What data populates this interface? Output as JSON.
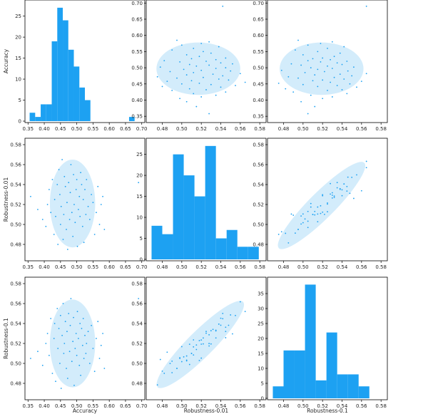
{
  "colors": {
    "bar": "#1da1f2",
    "point": "#1da1f2",
    "ellipse": "#d3ecfb",
    "axis": "#000000"
  },
  "chart_data": [
    {
      "type": "bar",
      "row": 0,
      "col": 0,
      "ylabel": "Accuracy",
      "xlabel": "",
      "xlim": [
        0.345,
        0.705
      ],
      "ylim": [
        0,
        28.5
      ],
      "xticks": [
        "0.35",
        "0.40",
        "0.45",
        "0.50",
        "0.55",
        "0.60",
        "0.65",
        "0.70"
      ],
      "yticks": [
        "0",
        "5",
        "10",
        "15",
        "20",
        "25"
      ],
      "bins": [
        0.355,
        0.372,
        0.389,
        0.406,
        0.423,
        0.44,
        0.457,
        0.474,
        0.491,
        0.508,
        0.525,
        0.542,
        0.559,
        0.576,
        0.593,
        0.61,
        0.627,
        0.644,
        0.661,
        0.678,
        0.695
      ],
      "counts": [
        2,
        1,
        4,
        4,
        19,
        27,
        24,
        17,
        13,
        8,
        5,
        0,
        0,
        0,
        0,
        0,
        0,
        0,
        1,
        0
      ]
    },
    {
      "type": "scatter",
      "row": 0,
      "col": 1,
      "ylabel": "",
      "xlabel": "",
      "xlim": [
        0.465,
        0.585
      ],
      "ylim": [
        0.335,
        0.705
      ],
      "xticks": [
        "0.48",
        "0.50",
        "0.52",
        "0.54",
        "0.56",
        "0.58"
      ],
      "yticks": [
        "0.35",
        "0.40",
        "0.45",
        "0.50",
        "0.55",
        "0.60",
        "0.65",
        "0.70"
      ],
      "ellipse": {
        "cx": 0.517,
        "cy": 0.497,
        "rx": 0.043,
        "ry": 0.081,
        "angle": 0
      }
    },
    {
      "type": "scatter",
      "row": 0,
      "col": 2,
      "ylabel": "",
      "xlabel": "",
      "xlim": [
        0.465,
        0.585
      ],
      "ylim": [
        0.335,
        0.705
      ],
      "xticks": [
        "0.48",
        "0.50",
        "0.52",
        "0.54",
        "0.56",
        "0.58"
      ],
      "yticks": [
        "0.35",
        "0.40",
        "0.45",
        "0.50",
        "0.55",
        "0.60",
        "0.65",
        "0.70"
      ],
      "ellipse": {
        "cx": 0.519,
        "cy": 0.497,
        "rx": 0.043,
        "ry": 0.081,
        "angle": 0
      }
    },
    {
      "type": "scatter",
      "row": 1,
      "col": 0,
      "ylabel": "Robustness-0.01",
      "xlabel": "",
      "xlim": [
        0.345,
        0.705
      ],
      "ylim": [
        0.465,
        0.585
      ],
      "xticks": [
        "0.35",
        "0.40",
        "0.45",
        "0.50",
        "0.55",
        "0.60",
        "0.65",
        "0.70"
      ],
      "yticks": [
        "0.48",
        "0.50",
        "0.52",
        "0.54",
        "0.56",
        "0.58"
      ],
      "ellipse": {
        "cx": 0.487,
        "cy": 0.521,
        "rx": 0.085,
        "ry": 0.044,
        "angle": 0
      }
    },
    {
      "type": "bar",
      "row": 1,
      "col": 1,
      "ylabel": "",
      "xlabel": "",
      "xlim": [
        0.465,
        0.585
      ],
      "ylim": [
        0,
        28.5
      ],
      "xticks": [
        "0.48",
        "0.50",
        "0.52",
        "0.54",
        "0.56",
        "0.58"
      ],
      "yticks": [
        "0",
        "5",
        "10",
        "15",
        "20",
        "25"
      ],
      "bins": [
        0.469,
        0.48,
        0.491,
        0.502,
        0.513,
        0.524,
        0.535,
        0.546,
        0.557,
        0.568,
        0.579
      ],
      "counts": [
        8,
        6,
        25,
        20,
        15,
        27,
        5,
        7,
        3,
        3
      ]
    },
    {
      "type": "scatter",
      "row": 1,
      "col": 2,
      "ylabel": "",
      "xlabel": "",
      "xlim": [
        0.465,
        0.585
      ],
      "ylim": [
        0.465,
        0.585
      ],
      "xticks": [
        "0.48",
        "0.50",
        "0.52",
        "0.54",
        "0.56",
        "0.58"
      ],
      "yticks": [
        "0.48",
        "0.50",
        "0.52",
        "0.54",
        "0.56",
        "0.58"
      ],
      "ellipse": {
        "cx": 0.519,
        "cy": 0.519,
        "rx": 0.062,
        "ry": 0.013,
        "angle": 45
      }
    },
    {
      "type": "scatter",
      "row": 2,
      "col": 0,
      "ylabel": "Robustness-0.1",
      "xlabel": "Accuracy",
      "xlim": [
        0.345,
        0.705
      ],
      "ylim": [
        0.465,
        0.585
      ],
      "xticks": [
        "0.35",
        "0.40",
        "0.45",
        "0.50",
        "0.55",
        "0.60",
        "0.65",
        "0.70"
      ],
      "yticks": [
        "0.48",
        "0.50",
        "0.52",
        "0.54",
        "0.56",
        "0.58"
      ],
      "ellipse": {
        "cx": 0.487,
        "cy": 0.52,
        "rx": 0.085,
        "ry": 0.044,
        "angle": 0
      }
    },
    {
      "type": "scatter",
      "row": 2,
      "col": 1,
      "ylabel": "",
      "xlabel": "Robustness-0.01",
      "xlim": [
        0.465,
        0.585
      ],
      "ylim": [
        0.465,
        0.585
      ],
      "xticks": [
        "0.48",
        "0.50",
        "0.52",
        "0.54",
        "0.56",
        "0.58"
      ],
      "yticks": [
        "0.48",
        "0.50",
        "0.52",
        "0.54",
        "0.56",
        "0.58"
      ],
      "ellipse": {
        "cx": 0.519,
        "cy": 0.519,
        "rx": 0.062,
        "ry": 0.013,
        "angle": 45
      }
    },
    {
      "type": "bar",
      "row": 2,
      "col": 2,
      "ylabel": "",
      "xlabel": "Robustness-0.1",
      "xlim": [
        0.465,
        0.585
      ],
      "ylim": [
        0,
        40
      ],
      "xticks": [
        "0.48",
        "0.50",
        "0.52",
        "0.54",
        "0.56",
        "0.58"
      ],
      "yticks": [
        "0",
        "5",
        "10",
        "15",
        "20",
        "25",
        "30",
        "35"
      ],
      "bins": [
        0.469,
        0.48,
        0.491,
        0.502,
        0.513,
        0.524,
        0.535,
        0.546,
        0.557,
        0.568,
        0.579
      ],
      "counts": [
        4,
        16,
        16,
        38,
        6,
        22,
        8,
        8,
        4,
        0
      ]
    }
  ],
  "scatter_points": {
    "acc": [
      0.358,
      0.38,
      0.395,
      0.405,
      0.41,
      0.415,
      0.42,
      0.425,
      0.43,
      0.432,
      0.435,
      0.44,
      0.442,
      0.445,
      0.448,
      0.45,
      0.452,
      0.455,
      0.458,
      0.46,
      0.462,
      0.465,
      0.468,
      0.47,
      0.472,
      0.475,
      0.478,
      0.48,
      0.482,
      0.485,
      0.488,
      0.49,
      0.492,
      0.495,
      0.498,
      0.5,
      0.502,
      0.505,
      0.508,
      0.51,
      0.512,
      0.515,
      0.518,
      0.52,
      0.522,
      0.525,
      0.528,
      0.53,
      0.535,
      0.54,
      0.545,
      0.55,
      0.555,
      0.56,
      0.565,
      0.57,
      0.575,
      0.58,
      0.585,
      0.69
    ],
    "r01": [
      0.528,
      0.515,
      0.505,
      0.498,
      0.52,
      0.535,
      0.512,
      0.545,
      0.49,
      0.525,
      0.508,
      0.54,
      0.48,
      0.555,
      0.53,
      0.5,
      0.518,
      0.565,
      0.485,
      0.51,
      0.548,
      0.538,
      0.495,
      0.522,
      0.475,
      0.542,
      0.505,
      0.532,
      0.56,
      0.512,
      0.488,
      0.55,
      0.52,
      0.502,
      0.535,
      0.545,
      0.478,
      0.515,
      0.528,
      0.508,
      0.552,
      0.54,
      0.498,
      0.525,
      0.482,
      0.535,
      0.51,
      0.545,
      0.518,
      0.505,
      0.53,
      0.522,
      0.49,
      0.512,
      0.538,
      0.5,
      0.52,
      0.528,
      0.495,
      0.542
    ],
    "r1": [
      0.505,
      0.512,
      0.498,
      0.52,
      0.53,
      0.508,
      0.545,
      0.49,
      0.525,
      0.54,
      0.482,
      0.555,
      0.515,
      0.535,
      0.5,
      0.548,
      0.475,
      0.528,
      0.56,
      0.51,
      0.52,
      0.542,
      0.495,
      0.532,
      0.485,
      0.55,
      0.512,
      0.538,
      0.565,
      0.502,
      0.522,
      0.546,
      0.478,
      0.515,
      0.53,
      0.508,
      0.552,
      0.525,
      0.498,
      0.54,
      0.488,
      0.535,
      0.518,
      0.545,
      0.505,
      0.528,
      0.51,
      0.52,
      0.532,
      0.5,
      0.538,
      0.515,
      0.492,
      0.525,
      0.542,
      0.505,
      0.518,
      0.53,
      0.495,
      0.565
    ]
  }
}
